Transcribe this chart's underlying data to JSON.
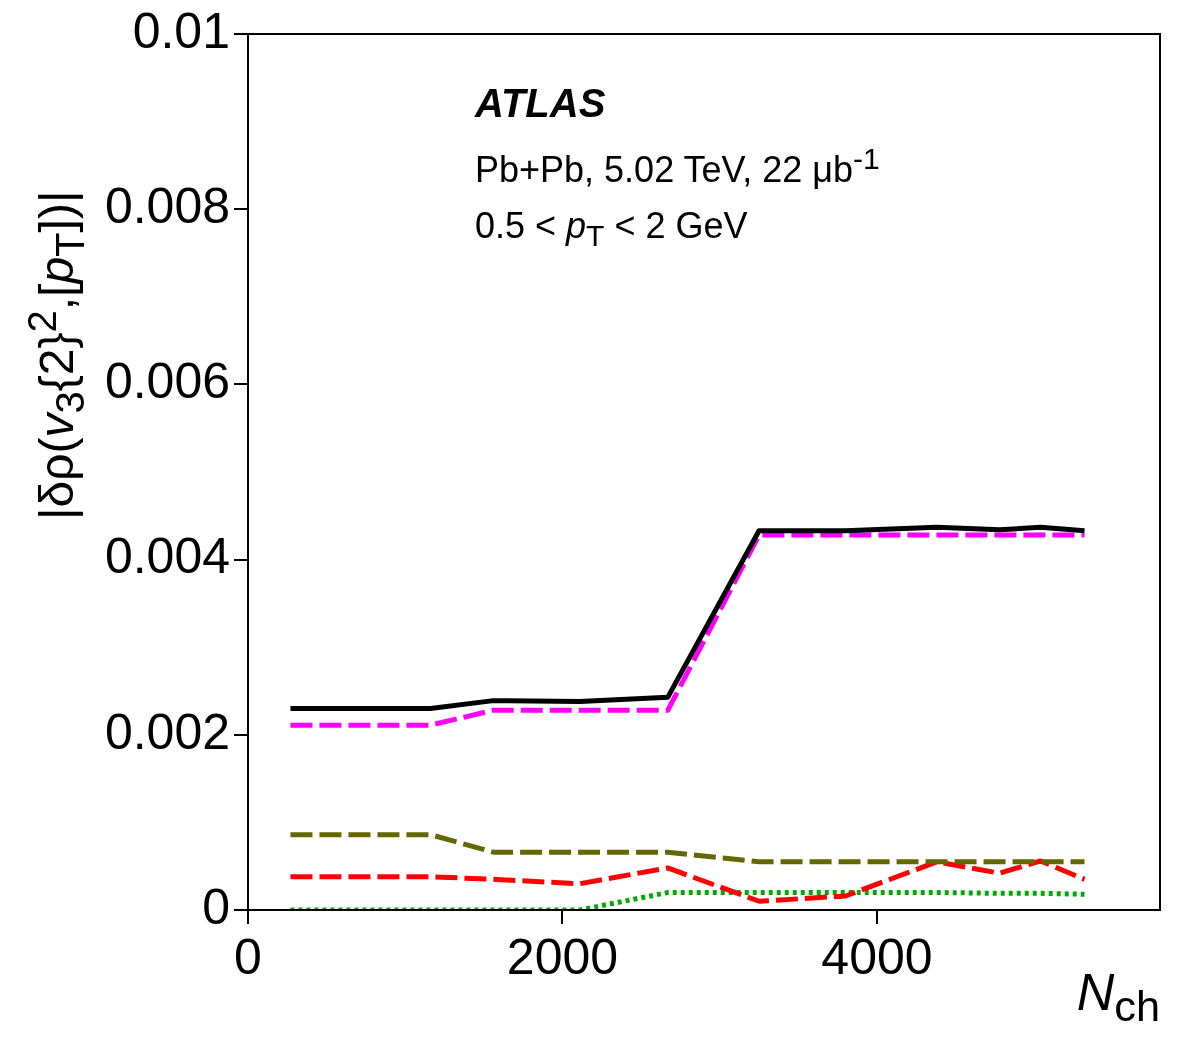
{
  "chart_data": {
    "type": "line",
    "xlabel": "N$_{ch}$",
    "ylabel": "|δρ(v$_{3}${2}$^{2}$,[p$_{T}$])|",
    "x": [
      270,
      1160,
      1560,
      2110,
      2670,
      3250,
      3800,
      4380,
      4780,
      5040,
      5320
    ],
    "series": [
      {
        "color": "#000000",
        "line_style": "solid",
        "values": [
          0.0023,
          0.0023,
          0.00239,
          0.00238,
          0.00243,
          0.00433,
          0.00433,
          0.00437,
          0.00434,
          0.00437,
          0.00433
        ]
      },
      {
        "color": "#ff00ff",
        "line_style": "dashed",
        "values": [
          0.00211,
          0.00211,
          0.00228,
          0.00228,
          0.00228,
          0.00428,
          0.00428,
          0.00428,
          0.00428,
          0.00428,
          0.00428
        ]
      },
      {
        "color": "#666600",
        "line_style": "dashed",
        "values": [
          0.00086,
          0.00086,
          0.00066,
          0.00066,
          0.00066,
          0.00055,
          0.00055,
          0.00055,
          0.00055,
          0.00055,
          0.00055
        ]
      },
      {
        "color": "#ff0000",
        "line_style": "dashed",
        "values": [
          0.00038,
          0.00038,
          0.00035,
          0.0003,
          0.00048,
          0.0001,
          0.00016,
          0.00055,
          0.00042,
          0.00056,
          0.00035
        ]
      },
      {
        "color": "#00aa00",
        "line_style": "dotted",
        "values": [
          0,
          0,
          0,
          0,
          0.0002,
          0.0002,
          0.0002,
          0.0002,
          0.00019,
          0.00019,
          0.00018
        ]
      }
    ],
    "xlim": [
      0,
      5800
    ],
    "xticks": [
      0,
      2000,
      4000
    ],
    "ylim": [
      0,
      0.01
    ],
    "yticks": [
      0,
      0.002,
      0.004,
      0.006,
      0.008,
      {
        "value": 0.01,
        "label": "0.01"
      }
    ],
    "annotations": [
      "ATLAS",
      "Pb+Pb, 5.02 TeV, 22 μb$^{-1}$",
      "0.5 < p$_{T}$ < 2 GeV"
    ],
    "marker": "none",
    "grid": false,
    "legend": false
  }
}
